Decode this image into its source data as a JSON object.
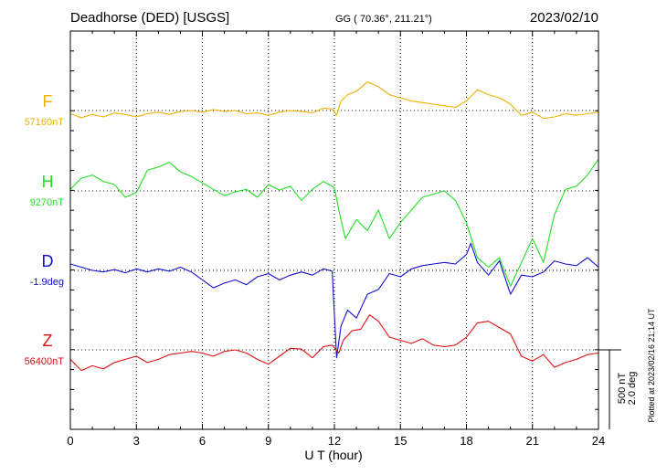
{
  "header": {
    "station": "Deadhorse (DED)  [USGS]",
    "coords": "GG ( 70.36°, 211.21°)",
    "date": "2023/02/10"
  },
  "footer": {
    "plotted": "Plotted at 2023/02/16 21:14 UT",
    "scale_nt": "500 nT",
    "scale_deg": "2.0 deg"
  },
  "colors": {
    "F": "#f0b000",
    "H": "#22e022",
    "D": "#1010d0",
    "Z": "#e01010",
    "axis": "#000000",
    "grid": "#000000"
  },
  "chart_data": {
    "type": "line",
    "title": "Deadhorse (DED)  [USGS]",
    "xlabel": "U T (hour)",
    "ylabel": "",
    "xlim": [
      0,
      24
    ],
    "x_ticks": [
      "0",
      "3",
      "6",
      "9",
      "12",
      "15",
      "18",
      "21",
      "24"
    ],
    "grid": true,
    "series": [
      {
        "name": "F",
        "baseline_label": "57160nT",
        "color": "#f0b000",
        "points": [
          [
            0,
            -20
          ],
          [
            0.5,
            -45
          ],
          [
            1,
            -25
          ],
          [
            1.5,
            -40
          ],
          [
            2,
            -15
          ],
          [
            2.5,
            -25
          ],
          [
            3,
            -40
          ],
          [
            3.5,
            -20
          ],
          [
            4,
            -10
          ],
          [
            4.5,
            -25
          ],
          [
            5,
            -5
          ],
          [
            5.5,
            0
          ],
          [
            6,
            -10
          ],
          [
            6.5,
            5
          ],
          [
            7,
            -5
          ],
          [
            7.5,
            0
          ],
          [
            8,
            -20
          ],
          [
            8.5,
            -15
          ],
          [
            9,
            -30
          ],
          [
            9.5,
            -10
          ],
          [
            10,
            0
          ],
          [
            10.5,
            -5
          ],
          [
            11,
            -15
          ],
          [
            11.5,
            15
          ],
          [
            11.9,
            10
          ],
          [
            12.1,
            -30
          ],
          [
            12.3,
            60
          ],
          [
            12.6,
            100
          ],
          [
            13,
            120
          ],
          [
            13.5,
            180
          ],
          [
            14,
            150
          ],
          [
            14.5,
            100
          ],
          [
            15,
            80
          ],
          [
            15.5,
            60
          ],
          [
            16,
            50
          ],
          [
            16.5,
            40
          ],
          [
            17,
            30
          ],
          [
            17.5,
            20
          ],
          [
            18,
            60
          ],
          [
            18.5,
            130
          ],
          [
            19,
            100
          ],
          [
            19.5,
            80
          ],
          [
            20,
            40
          ],
          [
            20.5,
            -30
          ],
          [
            21,
            -10
          ],
          [
            21.5,
            -50
          ],
          [
            22,
            -40
          ],
          [
            22.5,
            -20
          ],
          [
            23,
            -30
          ],
          [
            23.5,
            -20
          ],
          [
            24,
            -10
          ]
        ]
      },
      {
        "name": "H",
        "baseline_label": "9270nT",
        "color": "#22e022",
        "points": [
          [
            0,
            10
          ],
          [
            0.5,
            80
          ],
          [
            1,
            100
          ],
          [
            1.5,
            60
          ],
          [
            2,
            40
          ],
          [
            2.5,
            -40
          ],
          [
            3,
            -10
          ],
          [
            3.5,
            130
          ],
          [
            4,
            150
          ],
          [
            4.5,
            180
          ],
          [
            5,
            120
          ],
          [
            5.5,
            90
          ],
          [
            6,
            50
          ],
          [
            6.5,
            10
          ],
          [
            7,
            -30
          ],
          [
            7.5,
            -5
          ],
          [
            8,
            10
          ],
          [
            8.5,
            -40
          ],
          [
            9,
            40
          ],
          [
            9.5,
            5
          ],
          [
            10,
            30
          ],
          [
            10.5,
            -60
          ],
          [
            11,
            10
          ],
          [
            11.5,
            60
          ],
          [
            12,
            20
          ],
          [
            12.2,
            -120
          ],
          [
            12.5,
            -300
          ],
          [
            13,
            -180
          ],
          [
            13.5,
            -250
          ],
          [
            14,
            -120
          ],
          [
            14.5,
            -300
          ],
          [
            15,
            -200
          ],
          [
            15.5,
            -120
          ],
          [
            16,
            -40
          ],
          [
            16.5,
            -20
          ],
          [
            17,
            0
          ],
          [
            17.5,
            -60
          ],
          [
            18,
            -200
          ],
          [
            18.5,
            -420
          ],
          [
            19,
            -480
          ],
          [
            19.5,
            -420
          ],
          [
            20,
            -600
          ],
          [
            20.5,
            -450
          ],
          [
            21,
            -300
          ],
          [
            21.5,
            -450
          ],
          [
            22,
            -150
          ],
          [
            22.5,
            10
          ],
          [
            23,
            30
          ],
          [
            23.5,
            100
          ],
          [
            24,
            200
          ]
        ]
      },
      {
        "name": "D",
        "baseline_label": "-1.9deg",
        "color": "#1010d0",
        "points": [
          [
            0,
            40
          ],
          [
            0.5,
            20
          ],
          [
            1,
            0
          ],
          [
            1.5,
            -10
          ],
          [
            2,
            5
          ],
          [
            2.5,
            -15
          ],
          [
            3,
            10
          ],
          [
            3.5,
            -10
          ],
          [
            4,
            10
          ],
          [
            4.5,
            -5
          ],
          [
            5,
            20
          ],
          [
            5.5,
            -10
          ],
          [
            6,
            -60
          ],
          [
            6.5,
            -110
          ],
          [
            7,
            -80
          ],
          [
            7.5,
            -60
          ],
          [
            8,
            -90
          ],
          [
            8.5,
            -40
          ],
          [
            9,
            -20
          ],
          [
            9.5,
            -60
          ],
          [
            10,
            -30
          ],
          [
            10.5,
            -10
          ],
          [
            11,
            -30
          ],
          [
            11.5,
            10
          ],
          [
            11.9,
            -5
          ],
          [
            12.1,
            -550
          ],
          [
            12.3,
            -350
          ],
          [
            12.6,
            -250
          ],
          [
            13,
            -300
          ],
          [
            13.5,
            -150
          ],
          [
            14,
            -120
          ],
          [
            14.5,
            -20
          ],
          [
            15,
            -40
          ],
          [
            15.5,
            10
          ],
          [
            16,
            30
          ],
          [
            16.5,
            40
          ],
          [
            17,
            50
          ],
          [
            17.5,
            40
          ],
          [
            18,
            100
          ],
          [
            18.2,
            170
          ],
          [
            18.5,
            50
          ],
          [
            19,
            -30
          ],
          [
            19.5,
            60
          ],
          [
            20,
            -150
          ],
          [
            20.5,
            -30
          ],
          [
            21,
            -40
          ],
          [
            21.5,
            -10
          ],
          [
            22,
            60
          ],
          [
            22.5,
            40
          ],
          [
            23,
            30
          ],
          [
            23.5,
            80
          ],
          [
            24,
            20
          ]
        ]
      },
      {
        "name": "Z",
        "baseline_label": "56400nT",
        "color": "#e01010",
        "points": [
          [
            0,
            -60
          ],
          [
            0.5,
            -130
          ],
          [
            1,
            -100
          ],
          [
            1.5,
            -120
          ],
          [
            2,
            -80
          ],
          [
            2.5,
            -60
          ],
          [
            3,
            -40
          ],
          [
            3.5,
            -80
          ],
          [
            4,
            -60
          ],
          [
            4.5,
            -30
          ],
          [
            5,
            -20
          ],
          [
            5.5,
            -10
          ],
          [
            6,
            -20
          ],
          [
            6.5,
            -40
          ],
          [
            7,
            -10
          ],
          [
            7.5,
            0
          ],
          [
            8,
            -20
          ],
          [
            8.5,
            -60
          ],
          [
            9,
            -90
          ],
          [
            9.5,
            -40
          ],
          [
            10,
            10
          ],
          [
            10.5,
            5
          ],
          [
            11,
            -50
          ],
          [
            11.5,
            20
          ],
          [
            11.9,
            30
          ],
          [
            12.2,
            -20
          ],
          [
            12.4,
            60
          ],
          [
            12.8,
            120
          ],
          [
            13.2,
            130
          ],
          [
            13.6,
            220
          ],
          [
            14,
            180
          ],
          [
            14.5,
            80
          ],
          [
            15,
            60
          ],
          [
            15.5,
            40
          ],
          [
            16,
            70
          ],
          [
            16.5,
            30
          ],
          [
            17,
            20
          ],
          [
            17.5,
            30
          ],
          [
            18,
            80
          ],
          [
            18.5,
            170
          ],
          [
            19,
            180
          ],
          [
            19.5,
            140
          ],
          [
            20,
            100
          ],
          [
            20.5,
            -40
          ],
          [
            21,
            -70
          ],
          [
            21.5,
            -30
          ],
          [
            22,
            -110
          ],
          [
            22.5,
            -80
          ],
          [
            23,
            -60
          ],
          [
            23.5,
            -30
          ],
          [
            24,
            -20
          ]
        ]
      }
    ]
  }
}
